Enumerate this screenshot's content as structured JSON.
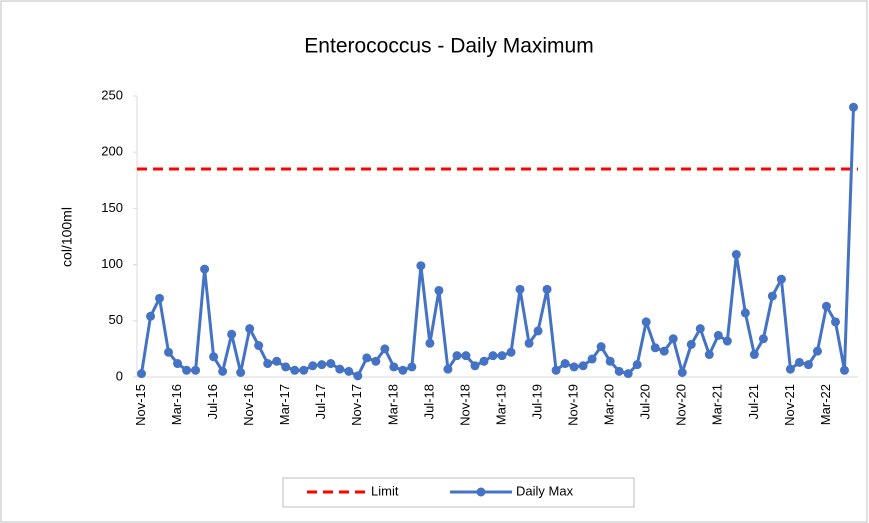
{
  "chart_data": {
    "type": "line",
    "title": "Enterococcus - Daily Maximum",
    "y_label": "col/100ml",
    "categories": [
      "Nov-15",
      null,
      null,
      null,
      "Mar-16",
      null,
      null,
      null,
      "Jul-16",
      null,
      null,
      null,
      "Nov-16",
      null,
      null,
      null,
      "Mar-17",
      null,
      null,
      null,
      "Jul-17",
      null,
      null,
      null,
      "Nov-17",
      null,
      null,
      null,
      "Mar-18",
      null,
      null,
      null,
      "Jul-18",
      null,
      null,
      null,
      "Nov-18",
      null,
      null,
      null,
      "Mar-19",
      null,
      null,
      null,
      "Jul-19",
      null,
      null,
      null,
      "Nov-19",
      null,
      null,
      null,
      "Mar-20",
      null,
      null,
      null,
      "Jul-20",
      null,
      null,
      null,
      "Nov-20",
      null,
      null,
      null,
      "Mar-21",
      null,
      null,
      null,
      "Jul-21",
      null,
      null,
      null,
      "Nov-21",
      null,
      null,
      null,
      "Mar-22",
      null,
      null,
      null
    ],
    "series": [
      {
        "name": "Daily Max",
        "color": "#4472c4",
        "values": [
          3,
          54,
          70,
          22,
          12,
          6,
          6,
          96,
          18,
          5,
          38,
          4,
          43,
          28,
          12,
          14,
          9,
          6,
          6,
          10,
          11,
          12,
          7,
          5,
          1,
          17,
          14,
          25,
          9,
          6,
          9,
          99,
          30,
          77,
          7,
          19,
          19,
          10,
          14,
          19,
          19,
          22,
          78,
          30,
          41,
          78,
          6,
          12,
          9,
          10,
          16,
          27,
          14,
          5,
          3,
          11,
          49,
          26,
          23,
          34,
          4,
          29,
          43,
          20,
          37,
          32,
          109,
          57,
          20,
          34,
          72,
          87,
          7,
          13,
          11,
          23,
          63,
          49,
          6,
          240
        ]
      }
    ],
    "limit": {
      "name": "Limit",
      "value": 185,
      "color": "#ff0000"
    },
    "ylim": [
      0,
      250
    ],
    "yticks": [
      0,
      50,
      100,
      150,
      200,
      250
    ],
    "grid": false
  }
}
